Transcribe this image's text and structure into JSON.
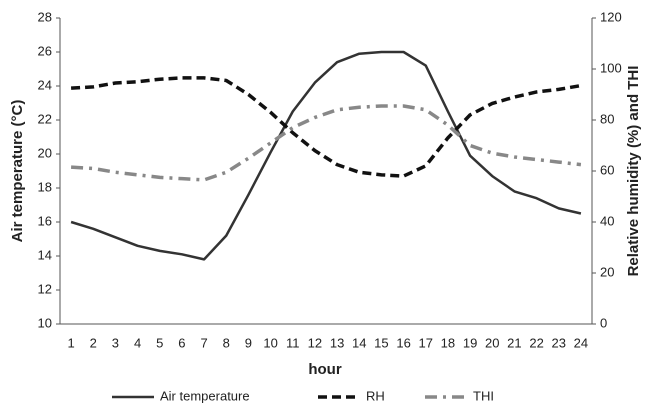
{
  "chart_data": {
    "type": "line",
    "x_label": "hour",
    "y_label": "Air temperature (°C)",
    "y2_label": "Relative humidity (%)  and THI",
    "categories": [
      "1",
      "2",
      "3",
      "4",
      "5",
      "6",
      "7",
      "8",
      "9",
      "10",
      "11",
      "12",
      "13",
      "14",
      "15",
      "16",
      "17",
      "18",
      "19",
      "20",
      "21",
      "22",
      "23",
      "24"
    ],
    "ylim": [
      10,
      28
    ],
    "yticks": [
      10,
      12,
      14,
      16,
      18,
      20,
      22,
      24,
      26,
      28
    ],
    "y2lim": [
      0,
      120
    ],
    "y2ticks": [
      0,
      20,
      40,
      60,
      80,
      100,
      120
    ],
    "legend": "bottom",
    "series": [
      {
        "name": "Air temperature",
        "color": "#333333",
        "style": "solid",
        "values": [
          16.0,
          15.6,
          15.1,
          14.6,
          14.3,
          14.1,
          13.8,
          15.2,
          17.6,
          20.1,
          22.5,
          24.2,
          25.4,
          25.9,
          26.0,
          26.0,
          25.2,
          22.5,
          19.9,
          18.7,
          17.8,
          17.4,
          16.8,
          16.5
        ]
      },
      {
        "name": "RH",
        "color": "#111111",
        "style": "dash",
        "axis": "y2",
        "values": [
          92.5,
          93,
          94.5,
          95,
          96,
          96.5,
          96.5,
          95.5,
          90,
          83,
          75,
          68,
          62.5,
          59.5,
          58.5,
          58,
          62,
          73,
          82,
          86.5,
          89,
          91,
          92,
          93.5
        ]
      },
      {
        "name": "THI",
        "color": "#888888",
        "style": "dashdot",
        "axis": "y2",
        "values": [
          61.5,
          61,
          59.5,
          58.5,
          57.5,
          57,
          56.5,
          59.5,
          65,
          71,
          77,
          81,
          84,
          85,
          85.5,
          85.5,
          84,
          78,
          70,
          67,
          65.5,
          64.5,
          63.5,
          62.5
        ]
      }
    ]
  }
}
